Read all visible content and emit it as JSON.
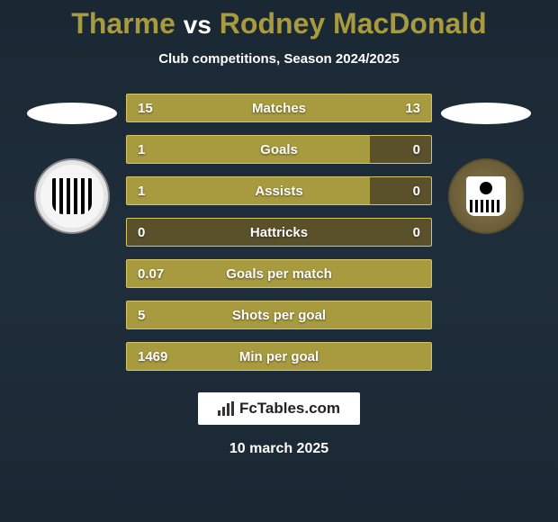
{
  "title": {
    "player1": "Tharme",
    "vs": "vs",
    "player2": "Rodney MacDonald"
  },
  "subtitle": "Club competitions, Season 2024/2025",
  "colors": {
    "bar_fill": "#a89a3e",
    "bar_bg": "#5a512a",
    "bar_border": "#d4c56a",
    "page_bg": "#1a2834",
    "text": "#ffffff"
  },
  "stats": [
    {
      "label": "Matches",
      "left_val": "15",
      "right_val": "13",
      "left_pct": 53,
      "right_pct": 47
    },
    {
      "label": "Goals",
      "left_val": "1",
      "right_val": "0",
      "left_pct": 80,
      "right_pct": 0
    },
    {
      "label": "Assists",
      "left_val": "1",
      "right_val": "0",
      "left_pct": 80,
      "right_pct": 0
    },
    {
      "label": "Hattricks",
      "left_val": "0",
      "right_val": "0",
      "left_pct": 0,
      "right_pct": 0
    },
    {
      "label": "Goals per match",
      "left_val": "0.07",
      "right_val": "",
      "left_pct": 100,
      "right_pct": 0
    },
    {
      "label": "Shots per goal",
      "left_val": "5",
      "right_val": "",
      "left_pct": 100,
      "right_pct": 0
    },
    {
      "label": "Min per goal",
      "left_val": "1469",
      "right_val": "",
      "left_pct": 100,
      "right_pct": 0
    }
  ],
  "footer": {
    "brand": "FcTables.com",
    "date": "10 march 2025"
  }
}
